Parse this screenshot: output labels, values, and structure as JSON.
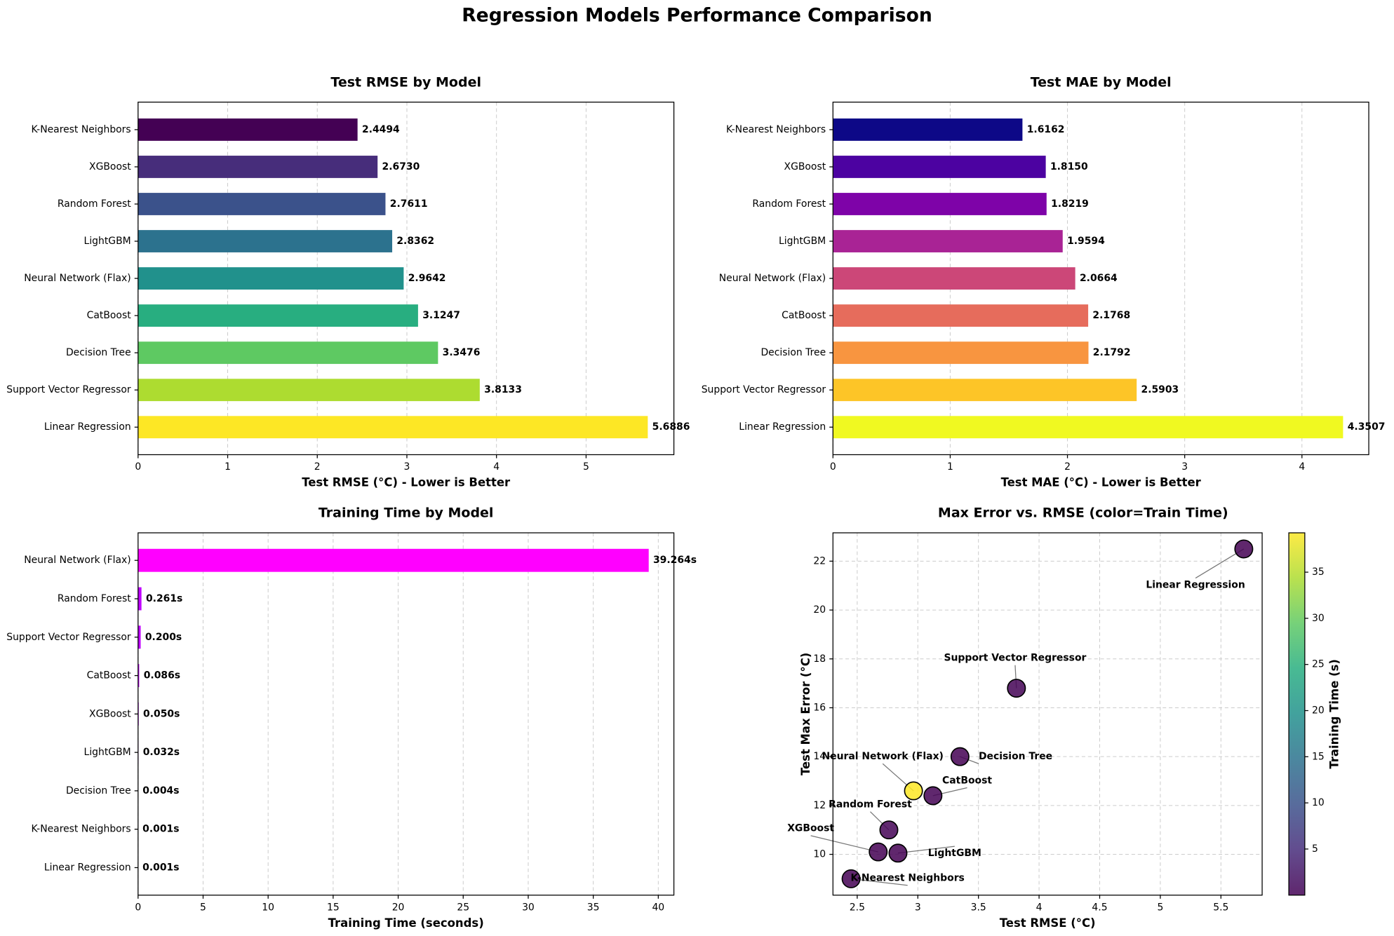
{
  "title": "Regression Models Performance Comparison",
  "chart_data": [
    {
      "type": "barh",
      "title": "Test RMSE by Model",
      "xlabel": "Test RMSE (°C) - Lower is Better",
      "categories": [
        "K-Nearest Neighbors",
        "XGBoost",
        "Random Forest",
        "LightGBM",
        "Neural Network (Flax)",
        "CatBoost",
        "Decision Tree",
        "Support Vector Regressor",
        "Linear Regression"
      ],
      "values": [
        2.4494,
        2.673,
        2.7611,
        2.8362,
        2.9642,
        3.1247,
        3.3476,
        3.8133,
        5.6886
      ],
      "value_labels": [
        "2.4494",
        "2.6730",
        "2.7611",
        "2.8362",
        "2.9642",
        "3.1247",
        "3.3476",
        "3.8133",
        "5.6886"
      ],
      "colors": [
        "#440154",
        "#472d7b",
        "#3b528b",
        "#2c728e",
        "#21918c",
        "#28ae80",
        "#5ec962",
        "#addc30",
        "#fde725"
      ],
      "xlim": [
        0,
        5.98
      ],
      "xticks": [
        0,
        1,
        2,
        3,
        4,
        5
      ],
      "grid": true
    },
    {
      "type": "barh",
      "title": "Test MAE by Model",
      "xlabel": "Test MAE (°C) - Lower is Better",
      "categories": [
        "K-Nearest Neighbors",
        "XGBoost",
        "Random Forest",
        "LightGBM",
        "Neural Network (Flax)",
        "CatBoost",
        "Decision Tree",
        "Support Vector Regressor",
        "Linear Regression"
      ],
      "values": [
        1.6162,
        1.815,
        1.8219,
        1.9594,
        2.0664,
        2.1768,
        2.1792,
        2.5903,
        4.3507
      ],
      "value_labels": [
        "1.6162",
        "1.8150",
        "1.8219",
        "1.9594",
        "2.0664",
        "2.1768",
        "2.1792",
        "2.5903",
        "4.3507"
      ],
      "colors": [
        "#0d0887",
        "#4c02a1",
        "#7e03a8",
        "#a92395",
        "#cc4778",
        "#e66c5c",
        "#f89540",
        "#fdc527",
        "#f0f921"
      ],
      "xlim": [
        0,
        4.57
      ],
      "xticks": [
        0,
        1,
        2,
        3,
        4
      ],
      "grid": true
    },
    {
      "type": "barh",
      "title": "Training Time by Model",
      "xlabel": "Training Time (seconds)",
      "categories": [
        "Neural Network (Flax)",
        "Random Forest",
        "Support Vector Regressor",
        "CatBoost",
        "XGBoost",
        "LightGBM",
        "Decision Tree",
        "K-Nearest Neighbors",
        "Linear Regression"
      ],
      "values": [
        39.264,
        0.261,
        0.2,
        0.086,
        0.05,
        0.032,
        0.004,
        0.001,
        0.001
      ],
      "value_labels": [
        "39.264s",
        "0.261s",
        "0.200s",
        "0.086s",
        "0.050s",
        "0.032s",
        "0.004s",
        "0.001s",
        "0.001s"
      ],
      "colors": [
        "#ff00ff",
        "#c000ff",
        "#c000ff",
        "#c000ff",
        "#c000ff",
        "#c000ff",
        "#c000ff",
        "#c000ff",
        "#c000ff"
      ],
      "xlim": [
        0,
        41.2
      ],
      "xticks": [
        0,
        5,
        10,
        15,
        20,
        25,
        30,
        35,
        40
      ],
      "grid": true
    },
    {
      "type": "scatter",
      "title": "Max Error vs. RMSE (color=Train Time)",
      "xlabel": "Test RMSE (°C)",
      "ylabel": "Test Max Error (°C)",
      "categories": [
        "K-Nearest Neighbors",
        "XGBoost",
        "Random Forest",
        "LightGBM",
        "Neural Network (Flax)",
        "CatBoost",
        "Decision Tree",
        "Support Vector Regressor",
        "Linear Regression"
      ],
      "x": [
        2.4494,
        2.673,
        2.7611,
        2.8362,
        2.9642,
        3.1247,
        3.3476,
        3.8133,
        5.6886
      ],
      "y": [
        9.0,
        10.1,
        11.0,
        10.05,
        12.6,
        12.4,
        14.0,
        16.8,
        22.5
      ],
      "c": [
        0.001,
        0.05,
        0.261,
        0.032,
        39.264,
        0.086,
        0.004,
        0.2,
        0.001
      ],
      "colormap": "viridis",
      "colorbar_label": "Training Time (s)",
      "clim": [
        0.001,
        39.264
      ],
      "cticks": [
        5,
        10,
        15,
        20,
        25,
        30,
        35
      ],
      "xlim": [
        2.3,
        5.84
      ],
      "xticks": [
        2.5,
        3.0,
        3.5,
        4.0,
        4.5,
        5.0,
        5.5
      ],
      "ylim": [
        8.33,
        23.16
      ],
      "yticks": [
        10,
        12,
        14,
        16,
        18,
        20,
        22
      ],
      "grid": true
    }
  ]
}
